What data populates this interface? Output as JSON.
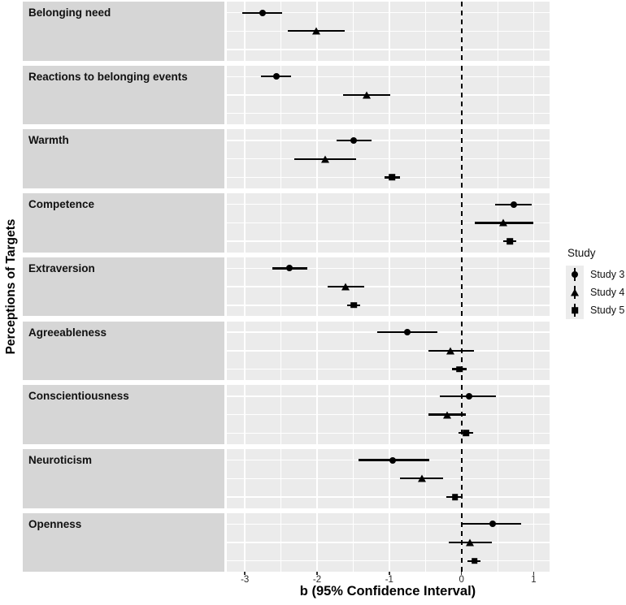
{
  "chart_data": {
    "type": "pointrange_forest",
    "title": "",
    "xlabel": "b (95% Confidence Interval)",
    "ylabel": "Perceptions of Targets",
    "x_range": [
      -3.25,
      1.22
    ],
    "x_ticks": [
      -3,
      -2,
      -1,
      0,
      1
    ],
    "x_tick_labels": [
      "-3",
      "-2",
      "-1",
      "0",
      "1"
    ],
    "x_minor_ticks": [
      -2.5,
      -1.5,
      -0.5,
      0.5
    ],
    "reference_line_x": 0,
    "grid": true,
    "legend": {
      "title": "Study",
      "position": "right",
      "entries": [
        {
          "label": "Study 3",
          "marker": "circle"
        },
        {
          "label": "Study 4",
          "marker": "triangle"
        },
        {
          "label": "Study 5",
          "marker": "square"
        }
      ]
    },
    "facets": [
      {
        "label": "Belonging need",
        "points": [
          {
            "study": "Study 3",
            "marker": "circle",
            "row": 0,
            "b": -2.76,
            "lo": -3.04,
            "hi": -2.48
          },
          {
            "study": "Study 4",
            "marker": "triangle",
            "row": 1,
            "b": -2.01,
            "lo": -2.41,
            "hi": -1.62
          }
        ]
      },
      {
        "label": "Reactions to belonging events",
        "points": [
          {
            "study": "Study 3",
            "marker": "circle",
            "row": 0,
            "b": -2.56,
            "lo": -2.78,
            "hi": -2.36
          },
          {
            "study": "Study 4",
            "marker": "triangle",
            "row": 1,
            "b": -1.31,
            "lo": -1.64,
            "hi": -0.99
          }
        ]
      },
      {
        "label": "Warmth",
        "points": [
          {
            "study": "Study 3",
            "marker": "circle",
            "row": 0,
            "b": -1.49,
            "lo": -1.73,
            "hi": -1.25
          },
          {
            "study": "Study 4",
            "marker": "triangle",
            "row": 1,
            "b": -1.89,
            "lo": -2.31,
            "hi": -1.46
          },
          {
            "study": "Study 5",
            "marker": "square",
            "row": 2,
            "b": -0.96,
            "lo": -1.07,
            "hi": -0.85
          }
        ]
      },
      {
        "label": "Competence",
        "points": [
          {
            "study": "Study 3",
            "marker": "circle",
            "row": 0,
            "b": 0.72,
            "lo": 0.47,
            "hi": 0.97
          },
          {
            "study": "Study 4",
            "marker": "triangle",
            "row": 1,
            "b": 0.58,
            "lo": 0.18,
            "hi": 1.0
          },
          {
            "study": "Study 5",
            "marker": "square",
            "row": 2,
            "b": 0.67,
            "lo": 0.58,
            "hi": 0.76
          }
        ]
      },
      {
        "label": "Extraversion",
        "points": [
          {
            "study": "Study 3",
            "marker": "circle",
            "row": 0,
            "b": -2.38,
            "lo": -2.62,
            "hi": -2.14
          },
          {
            "study": "Study 4",
            "marker": "triangle",
            "row": 1,
            "b": -1.61,
            "lo": -1.85,
            "hi": -1.35
          },
          {
            "study": "Study 5",
            "marker": "square",
            "row": 2,
            "b": -1.49,
            "lo": -1.58,
            "hi": -1.4
          }
        ]
      },
      {
        "label": "Agreeableness",
        "points": [
          {
            "study": "Study 3",
            "marker": "circle",
            "row": 0,
            "b": -0.75,
            "lo": -1.17,
            "hi": -0.33
          },
          {
            "study": "Study 4",
            "marker": "triangle",
            "row": 1,
            "b": -0.15,
            "lo": -0.46,
            "hi": 0.17
          },
          {
            "study": "Study 5",
            "marker": "square",
            "row": 2,
            "b": -0.03,
            "lo": -0.13,
            "hi": 0.07
          }
        ]
      },
      {
        "label": "Conscientiousness",
        "points": [
          {
            "study": "Study 3",
            "marker": "circle",
            "row": 0,
            "b": 0.1,
            "lo": -0.3,
            "hi": 0.48
          },
          {
            "study": "Study 4",
            "marker": "triangle",
            "row": 1,
            "b": -0.2,
            "lo": -0.46,
            "hi": 0.06
          },
          {
            "study": "Study 5",
            "marker": "square",
            "row": 2,
            "b": 0.06,
            "lo": -0.04,
            "hi": 0.16
          }
        ]
      },
      {
        "label": "Neuroticism",
        "points": [
          {
            "study": "Study 3",
            "marker": "circle",
            "row": 0,
            "b": -0.95,
            "lo": -1.43,
            "hi": -0.45
          },
          {
            "study": "Study 4",
            "marker": "triangle",
            "row": 1,
            "b": -0.55,
            "lo": -0.85,
            "hi": -0.25
          },
          {
            "study": "Study 5",
            "marker": "square",
            "row": 2,
            "b": -0.09,
            "lo": -0.21,
            "hi": 0.01
          }
        ]
      },
      {
        "label": "Openness",
        "points": [
          {
            "study": "Study 3",
            "marker": "circle",
            "row": 0,
            "b": 0.43,
            "lo": 0.01,
            "hi": 0.83
          },
          {
            "study": "Study 4",
            "marker": "triangle",
            "row": 1,
            "b": 0.12,
            "lo": -0.18,
            "hi": 0.42
          },
          {
            "study": "Study 5",
            "marker": "square",
            "row": 2,
            "b": 0.18,
            "lo": 0.08,
            "hi": 0.26
          }
        ]
      }
    ],
    "colors": {
      "panel_bg": "#ebebeb",
      "strip_bg": "#d6d6d6",
      "gridline": "#ffffff",
      "data": "#000000"
    }
  }
}
